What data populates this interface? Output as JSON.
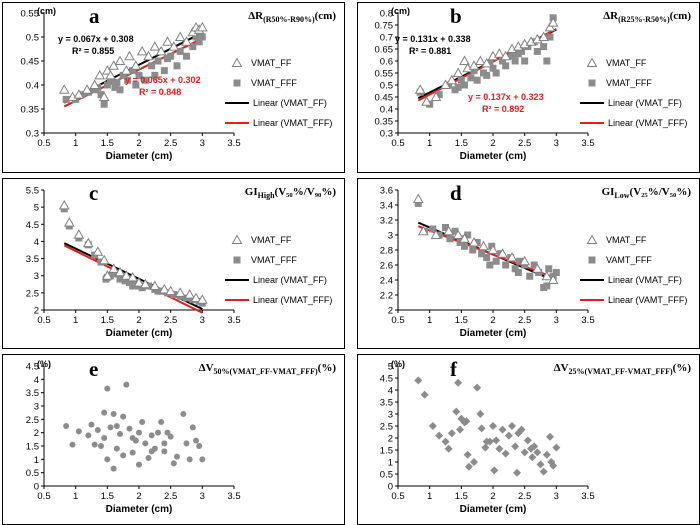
{
  "figure": {
    "xlabel": "Diameter (cm)"
  },
  "chart_data": [
    {
      "id": "a",
      "type": "scatter",
      "label": "a",
      "title_main": "ΔR",
      "title_sub": "(R50%-R90%)",
      "title_tail": "(cm)",
      "unit": "(cm)",
      "xlabel": "Diameter (cm)",
      "xlim": [
        0.5,
        3.5
      ],
      "xticks": [
        0.5,
        1,
        1.5,
        2,
        2.5,
        3,
        3.5
      ],
      "ylim": [
        0.3,
        0.55
      ],
      "yticks": [
        0.3,
        0.35,
        0.4,
        0.45,
        0.5,
        0.55
      ],
      "legend": [
        "VMAT_FF",
        "VMAT_FFF",
        "Linear (VMAT_FF)",
        "Linear (VMAT_FFF)"
      ],
      "fits": [
        {
          "name": "Linear (VMAT_FF)",
          "color": "#000000",
          "slope": 0.067,
          "intercept": 0.308,
          "equation": "y = 0.067x + 0.308",
          "r2": "R² = 0.855"
        },
        {
          "name": "Linear (VMAT_FFF)",
          "color": "#e0201b",
          "slope": 0.065,
          "intercept": 0.302,
          "equation": "y = 0.065x + 0.302",
          "r2": "R² = 0.848"
        }
      ],
      "series": [
        {
          "name": "VMAT_FF",
          "marker": "triangle",
          "x": [
            0.82,
            0.95,
            1.05,
            1.18,
            1.3,
            1.38,
            1.45,
            1.5,
            1.55,
            1.6,
            1.7,
            1.8,
            1.85,
            1.95,
            2.05,
            2.15,
            2.25,
            2.35,
            2.45,
            2.55,
            2.65,
            2.75,
            2.85,
            2.9,
            2.95,
            3.0
          ],
          "y": [
            0.39,
            0.375,
            0.38,
            0.39,
            0.4,
            0.42,
            0.375,
            0.43,
            0.42,
            0.44,
            0.45,
            0.43,
            0.46,
            0.44,
            0.47,
            0.46,
            0.48,
            0.47,
            0.49,
            0.48,
            0.5,
            0.49,
            0.51,
            0.52,
            0.515,
            0.52
          ]
        },
        {
          "name": "VMAT_FFF",
          "marker": "square",
          "x": [
            0.85,
            1.0,
            1.1,
            1.2,
            1.3,
            1.4,
            1.45,
            1.5,
            1.55,
            1.62,
            1.7,
            1.75,
            1.82,
            1.9,
            1.95,
            2.0,
            2.1,
            2.2,
            2.25,
            2.3,
            2.4,
            2.5,
            2.6,
            2.65,
            2.75,
            2.85,
            2.9,
            2.95,
            3.0,
            1.35,
            1.65,
            2.45
          ],
          "y": [
            0.37,
            0.37,
            0.38,
            0.385,
            0.39,
            0.38,
            0.36,
            0.4,
            0.41,
            0.395,
            0.39,
            0.42,
            0.41,
            0.43,
            0.4,
            0.42,
            0.41,
            0.44,
            0.42,
            0.45,
            0.43,
            0.46,
            0.44,
            0.47,
            0.46,
            0.48,
            0.5,
            0.49,
            0.5,
            0.395,
            0.405,
            0.455
          ]
        }
      ]
    },
    {
      "id": "b",
      "type": "scatter",
      "label": "b",
      "title_main": "ΔR",
      "title_sub": "(R25%-R50%)",
      "title_tail": "(cm)",
      "unit": "(cm)",
      "xlabel": "Diameter (cm)",
      "xlim": [
        0.5,
        3.5
      ],
      "xticks": [
        0.5,
        1,
        1.5,
        2,
        2.5,
        3,
        3.5
      ],
      "ylim": [
        0.3,
        0.8
      ],
      "yticks": [
        0.3,
        0.35,
        0.4,
        0.45,
        0.5,
        0.55,
        0.6,
        0.65,
        0.7,
        0.75,
        0.8
      ],
      "legend": [
        "VMAT_FF",
        "VMAT_FFF",
        "Linear (VMAT_FF)",
        "Linear (VMAT_FFF)"
      ],
      "fits": [
        {
          "name": "Linear (VMAT_FF)",
          "color": "#000000",
          "slope": 0.131,
          "intercept": 0.338,
          "equation": "y = 0.131x + 0.338",
          "r2": "R² = 0.881"
        },
        {
          "name": "Linear (VMAT_FFF)",
          "color": "#e0201b",
          "slope": 0.137,
          "intercept": 0.323,
          "equation": "y = 0.137x + 0.323",
          "r2": "R² = 0.892"
        }
      ],
      "series": [
        {
          "name": "VMAT_FF",
          "marker": "triangle",
          "x": [
            0.85,
            0.95,
            1.1,
            1.25,
            1.35,
            1.45,
            1.55,
            1.6,
            1.7,
            1.8,
            1.9,
            2.0,
            2.1,
            2.2,
            2.3,
            2.4,
            2.5,
            2.6,
            2.7,
            2.8,
            2.9,
            2.95
          ],
          "y": [
            0.48,
            0.43,
            0.45,
            0.5,
            0.52,
            0.55,
            0.6,
            0.57,
            0.58,
            0.6,
            0.59,
            0.62,
            0.63,
            0.62,
            0.65,
            0.66,
            0.67,
            0.68,
            0.69,
            0.7,
            0.74,
            0.76
          ]
        },
        {
          "name": "VMAT_FFF",
          "marker": "square",
          "x": [
            0.85,
            1.0,
            1.15,
            1.3,
            1.4,
            1.5,
            1.55,
            1.65,
            1.7,
            1.75,
            1.85,
            1.9,
            2.0,
            2.05,
            2.15,
            2.2,
            2.3,
            2.35,
            2.45,
            2.5,
            2.55,
            2.65,
            2.7,
            2.8,
            2.85,
            2.9,
            2.95,
            1.45,
            1.95,
            2.4
          ],
          "y": [
            0.47,
            0.42,
            0.46,
            0.5,
            0.48,
            0.52,
            0.5,
            0.53,
            0.56,
            0.52,
            0.55,
            0.54,
            0.57,
            0.55,
            0.6,
            0.58,
            0.62,
            0.6,
            0.64,
            0.6,
            0.66,
            0.68,
            0.64,
            0.66,
            0.6,
            0.7,
            0.78,
            0.49,
            0.59,
            0.63
          ]
        }
      ]
    },
    {
      "id": "c",
      "type": "scatter",
      "label": "c",
      "title_main": "GI",
      "title_sub": "High",
      "title_tail": "(V₅₀%/V₉₀%)",
      "title_paren_main": [
        "V",
        "50%",
        "/V",
        "90%"
      ],
      "unit": "",
      "xlabel": "Diameter (cm)",
      "xlim": [
        0.5,
        3.5
      ],
      "xticks": [
        0.5,
        1,
        1.5,
        2,
        2.5,
        3,
        3.5
      ],
      "ylim": [
        2,
        5.5
      ],
      "yticks": [
        2,
        2.5,
        3,
        3.5,
        4,
        4.5,
        5,
        5.5
      ],
      "legend": [
        "VMAT_FF",
        "VMAT_FFF",
        "Linear (VMAT_FF)",
        "Linear (VMAT_FFF)"
      ],
      "fits": [
        {
          "name": "Linear (VMAT_FF)",
          "color": "#000000",
          "slope": -0.88,
          "intercept": 4.67,
          "equation": "",
          "r2": ""
        },
        {
          "name": "Linear (VMAT_FFF)",
          "color": "#e0201b",
          "slope": -0.9,
          "intercept": 4.62,
          "equation": "",
          "r2": ""
        }
      ],
      "series": [
        {
          "name": "VMAT_FF",
          "marker": "triangle",
          "x": [
            0.82,
            0.9,
            1.05,
            1.2,
            1.35,
            1.45,
            1.5,
            1.6,
            1.7,
            1.8,
            1.9,
            2.0,
            2.1,
            2.25,
            2.4,
            2.5,
            2.65,
            2.8,
            2.9,
            3.0
          ],
          "y": [
            5.05,
            4.55,
            4.2,
            3.95,
            3.7,
            3.45,
            3.0,
            3.2,
            3.1,
            3.0,
            2.95,
            2.8,
            2.75,
            2.7,
            2.6,
            2.55,
            2.5,
            2.45,
            2.35,
            2.3
          ]
        },
        {
          "name": "VMAT_FFF",
          "marker": "square",
          "x": [
            0.82,
            0.9,
            1.05,
            1.2,
            1.3,
            1.4,
            1.48,
            1.55,
            1.62,
            1.7,
            1.78,
            1.85,
            1.95,
            2.0,
            2.05,
            2.15,
            2.25,
            2.35,
            2.45,
            2.55,
            2.65,
            2.75,
            2.85,
            2.95,
            3.0,
            1.5,
            1.9,
            2.3
          ],
          "y": [
            4.95,
            4.45,
            4.1,
            3.9,
            3.6,
            3.4,
            2.9,
            3.0,
            3.05,
            2.9,
            2.85,
            2.8,
            2.75,
            2.7,
            2.65,
            2.7,
            2.6,
            2.55,
            2.5,
            2.45,
            2.4,
            2.35,
            2.3,
            2.25,
            2.2,
            2.95,
            2.7,
            2.55
          ]
        }
      ]
    },
    {
      "id": "d",
      "type": "scatter",
      "label": "d",
      "title_main": "GI",
      "title_sub": "Low",
      "title_tail": "(V₂₅%/V₅₀%)",
      "title_paren_main": [
        "V",
        "25%",
        "/V",
        "50%"
      ],
      "unit": "",
      "xlabel": "Diameter (cm)",
      "xlim": [
        0.5,
        3.5
      ],
      "xticks": [
        0.5,
        1,
        1.5,
        2,
        2.5,
        3,
        3.5
      ],
      "ylim": [
        2,
        3.6
      ],
      "yticks": [
        2,
        2.2,
        2.4,
        2.6,
        2.8,
        3,
        3.2,
        3.4,
        3.6
      ],
      "legend": [
        "VMAT_FF",
        "VAMT_FFF",
        "Linear (VMAT_FF)",
        "Linear (VAMT_FFF)"
      ],
      "fits": [
        {
          "name": "Linear (VMAT_FF)",
          "color": "#000000",
          "slope": -0.36,
          "intercept": 3.46,
          "equation": "",
          "r2": ""
        },
        {
          "name": "Linear (VAMT_FFF)",
          "color": "#e0201b",
          "slope": -0.32,
          "intercept": 3.38,
          "equation": "",
          "r2": ""
        }
      ],
      "series": [
        {
          "name": "VMAT_FF",
          "marker": "triangle",
          "x": [
            0.82,
            0.9,
            1.1,
            1.3,
            1.45,
            1.55,
            1.7,
            1.85,
            2.0,
            2.15,
            2.3,
            2.5,
            2.7,
            2.85,
            2.95
          ],
          "y": [
            3.48,
            3.05,
            3.0,
            3.05,
            3.0,
            2.95,
            2.9,
            2.85,
            2.8,
            2.75,
            2.7,
            2.65,
            2.55,
            2.45,
            2.4
          ]
        },
        {
          "name": "VAMT_FFF",
          "marker": "square",
          "x": [
            0.82,
            0.92,
            1.05,
            1.15,
            1.25,
            1.32,
            1.4,
            1.48,
            1.55,
            1.6,
            1.68,
            1.75,
            1.82,
            1.9,
            1.98,
            2.05,
            2.12,
            2.2,
            2.28,
            2.35,
            2.42,
            2.5,
            2.58,
            2.65,
            2.72,
            2.8,
            2.88,
            2.95,
            3.0,
            1.5,
            1.95,
            2.4,
            2.85
          ],
          "y": [
            3.42,
            3.05,
            3.08,
            3.0,
            3.1,
            2.95,
            3.05,
            2.9,
            2.85,
            3.0,
            2.8,
            2.9,
            2.75,
            2.7,
            2.85,
            2.65,
            2.75,
            2.6,
            2.7,
            2.55,
            2.65,
            2.6,
            2.45,
            2.6,
            2.5,
            2.3,
            2.55,
            2.45,
            2.5,
            2.95,
            2.6,
            2.5,
            2.32
          ]
        }
      ]
    },
    {
      "id": "e",
      "type": "scatter",
      "label": "e",
      "title_main": "ΔV",
      "title_sub": "50%(VMAT_FF-VMAT_FFF)",
      "title_tail": "(%)",
      "unit": "(%)",
      "xlabel": "Diameter (cm)",
      "xlim": [
        0.5,
        3.5
      ],
      "xticks": [
        0.5,
        1,
        1.5,
        2,
        2.5,
        3,
        3.5
      ],
      "ylim": [
        0,
        4.5
      ],
      "yticks": [
        0,
        0.5,
        1,
        1.5,
        2,
        2.5,
        3,
        3.5,
        4,
        4.5
      ],
      "legend": [],
      "fits": [],
      "series": [
        {
          "name": "ΔV50%",
          "marker": "circle",
          "x": [
            0.85,
            0.95,
            1.05,
            1.2,
            1.25,
            1.3,
            1.35,
            1.45,
            1.45,
            1.5,
            1.5,
            1.55,
            1.6,
            1.6,
            1.65,
            1.7,
            1.75,
            1.75,
            1.8,
            1.85,
            1.9,
            1.9,
            1.95,
            2.0,
            2.0,
            2.05,
            2.1,
            2.15,
            2.2,
            2.25,
            2.3,
            2.35,
            2.4,
            2.4,
            2.45,
            2.5,
            2.6,
            2.7,
            2.75,
            2.8,
            2.85,
            2.9,
            2.95,
            3.0,
            1.4,
            1.65,
            2.2,
            2.55
          ],
          "y": [
            2.25,
            1.55,
            2.05,
            1.9,
            2.3,
            1.55,
            2.1,
            1.8,
            2.75,
            3.65,
            1.0,
            2.2,
            2.7,
            0.65,
            1.4,
            1.95,
            2.6,
            1.15,
            3.8,
            2.15,
            1.8,
            1.25,
            1.7,
            2.0,
            0.8,
            2.4,
            1.6,
            1.05,
            1.9,
            1.4,
            2.0,
            2.4,
            1.6,
            1.3,
            2.0,
            1.85,
            1.1,
            2.7,
            1.6,
            1.0,
            2.2,
            1.7,
            1.5,
            1.0,
            1.5,
            2.25,
            1.3,
            0.85
          ]
        }
      ]
    },
    {
      "id": "f",
      "type": "scatter",
      "label": "f",
      "title_main": "ΔV",
      "title_sub": "25%(VMAT_FF-VMAT_FFF)",
      "title_tail": "(%)",
      "unit": "(%)",
      "xlabel": "Diameter (cm)",
      "xlim": [
        0.5,
        3.5
      ],
      "xticks": [
        0.5,
        1,
        1.5,
        2,
        2.5,
        3,
        3.5
      ],
      "ylim": [
        0,
        5
      ],
      "yticks": [
        0,
        0.5,
        1,
        1.5,
        2,
        2.5,
        3,
        3.5,
        4,
        4.5,
        5
      ],
      "legend": [],
      "fits": [],
      "series": [
        {
          "name": "ΔV25%",
          "marker": "diamond",
          "x": [
            0.82,
            0.92,
            1.05,
            1.15,
            1.25,
            1.3,
            1.35,
            1.42,
            1.45,
            1.5,
            1.55,
            1.6,
            1.62,
            1.7,
            1.75,
            1.8,
            1.82,
            1.88,
            1.9,
            1.95,
            2.0,
            2.05,
            2.1,
            2.15,
            2.2,
            2.25,
            2.3,
            2.35,
            2.4,
            2.45,
            2.5,
            2.55,
            2.6,
            2.65,
            2.7,
            2.75,
            2.8,
            2.85,
            2.9,
            2.92,
            2.95,
            3.0,
            1.48,
            1.58,
            2.02,
            2.38,
            2.62
          ],
          "y": [
            4.4,
            3.8,
            2.5,
            2.1,
            1.85,
            1.55,
            2.2,
            3.1,
            4.3,
            2.8,
            2.65,
            1.3,
            0.8,
            1.0,
            4.1,
            3.0,
            2.4,
            1.6,
            1.85,
            1.85,
            2.5,
            1.9,
            1.55,
            2.35,
            1.35,
            2.1,
            2.5,
            1.65,
            2.2,
            2.35,
            1.4,
            1.9,
            1.55,
            1.65,
            1.4,
            0.9,
            0.6,
            1.3,
            2.05,
            1.0,
            0.85,
            1.6,
            2.35,
            2.7,
            0.65,
            0.55,
            1.2
          ]
        }
      ]
    }
  ]
}
